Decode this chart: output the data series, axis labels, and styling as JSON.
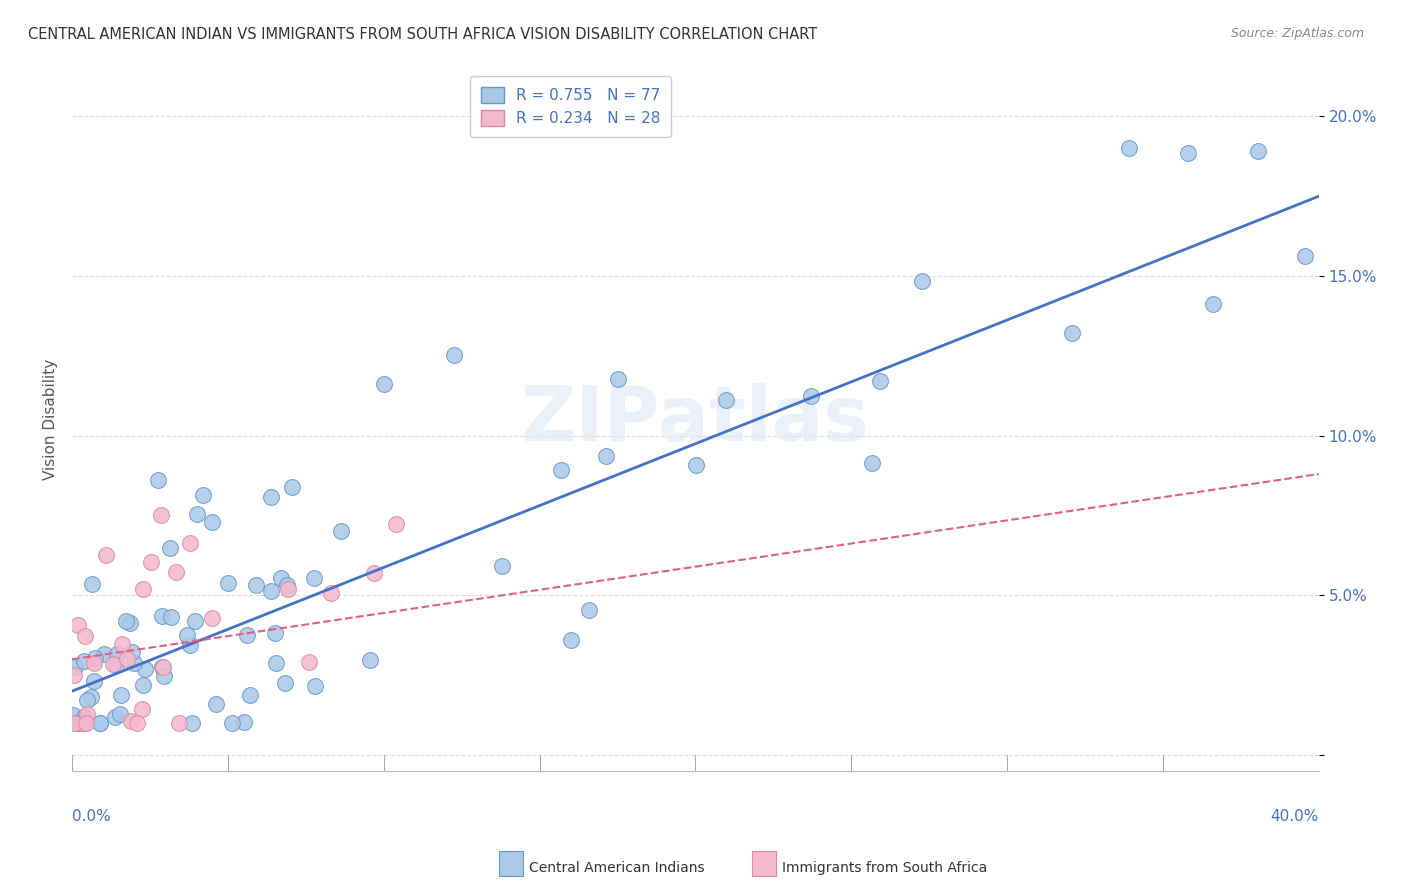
{
  "title": "CENTRAL AMERICAN INDIAN VS IMMIGRANTS FROM SOUTH AFRICA VISION DISABILITY CORRELATION CHART",
  "source": "Source: ZipAtlas.com",
  "ylabel": "Vision Disability",
  "watermark": "ZIPatlas",
  "x_lim": [
    0.0,
    0.4
  ],
  "y_lim": [
    -0.005,
    0.215
  ],
  "y_ticks": [
    0.0,
    0.05,
    0.1,
    0.15,
    0.2
  ],
  "y_tick_labels": [
    "",
    "5.0%",
    "10.0%",
    "15.0%",
    "20.0%"
  ],
  "legend_label_1": "R = 0.755   N = 77",
  "legend_label_2": "R = 0.234   N = 28",
  "series1_name": "Central American Indians",
  "series2_name": "Immigrants from South Africa",
  "series1_color": "#aac8e8",
  "series1_edge": "#6699cc",
  "series2_color": "#f5b8cc",
  "series2_edge": "#dd88aa",
  "blue_line_color": "#4472c4",
  "pink_line_color": "#e06080",
  "grid_color": "#dddddd",
  "title_color": "#333333",
  "source_color": "#888888",
  "accent_color": "#4472c4",
  "blue_line_start_x": 0.0,
  "blue_line_start_y": 0.02,
  "blue_line_end_x": 0.4,
  "blue_line_end_y": 0.175,
  "pink_line_start_x": 0.0,
  "pink_line_start_y": 0.03,
  "pink_line_end_x": 0.4,
  "pink_line_end_y": 0.088
}
